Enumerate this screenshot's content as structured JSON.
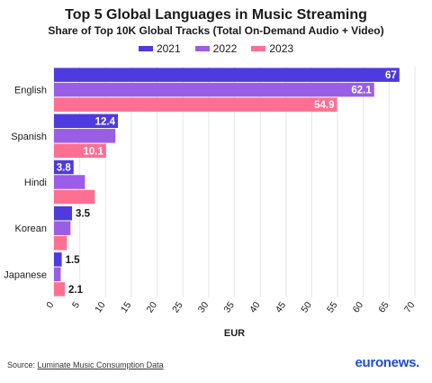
{
  "chart_data": {
    "type": "bar",
    "orientation": "horizontal",
    "title": "Top 5 Global Languages in Music Streaming",
    "subtitle": "Share of Top 10K Global Tracks (Total On-Demand Audio + Video)",
    "categories": [
      "English",
      "Spanish",
      "Hindi",
      "Korean",
      "Japanese"
    ],
    "series": [
      {
        "name": "2021",
        "color": "#4f3ae0",
        "values": [
          67,
          12.4,
          3.8,
          3.5,
          1.5
        ]
      },
      {
        "name": "2022",
        "color": "#9b5de5",
        "values": [
          62.1,
          11.9,
          6,
          3.2,
          1.3
        ]
      },
      {
        "name": "2023",
        "color": "#ff6f91",
        "values": [
          54.9,
          10.1,
          7.9,
          2.5,
          2.1
        ]
      }
    ],
    "data_labels": [
      {
        "category": "English",
        "series": "2021",
        "text": "67",
        "placement": "inside"
      },
      {
        "category": "English",
        "series": "2022",
        "text": "62.1",
        "placement": "inside"
      },
      {
        "category": "English",
        "series": "2023",
        "text": "54.9",
        "placement": "inside"
      },
      {
        "category": "Spanish",
        "series": "2021",
        "text": "12.4",
        "placement": "inside"
      },
      {
        "category": "Spanish",
        "series": "2023",
        "text": "10.1",
        "placement": "inside"
      },
      {
        "category": "Hindi",
        "series": "2021",
        "text": "3.8",
        "placement": "inside"
      },
      {
        "category": "Korean",
        "series": "2021",
        "text": "3.5",
        "placement": "outside"
      },
      {
        "category": "Japanese",
        "series": "2021",
        "text": "1.5",
        "placement": "outside"
      },
      {
        "category": "Japanese",
        "series": "2023",
        "text": "2.1",
        "placement": "outside"
      }
    ],
    "xlabel": "EUR",
    "xlim": [
      0,
      70
    ],
    "xticks": [
      0,
      5,
      10,
      15,
      20,
      25,
      30,
      35,
      40,
      45,
      50,
      55,
      60,
      65,
      70
    ],
    "grid": true,
    "legend_position": "top"
  },
  "footer": {
    "source_prefix": "Source: ",
    "source_link": "Luminate Music Consumption Data",
    "brand_main": "euronews",
    "brand_dot": "."
  }
}
